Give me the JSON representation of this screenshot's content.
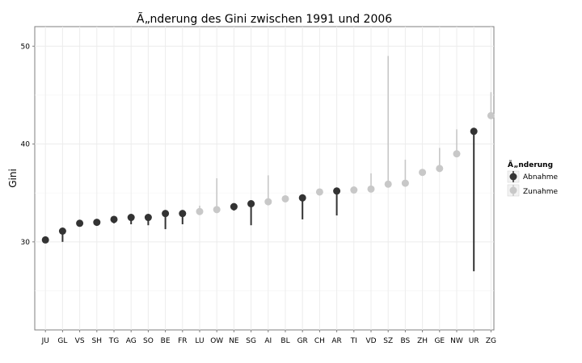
{
  "chart_data": {
    "type": "scatter",
    "title": "Ã„nderung des Gini zwischen 1991 und 2006",
    "xlabel": "",
    "ylabel": "Gini",
    "ylim": [
      21,
      52
    ],
    "yticks": [
      30,
      40,
      50
    ],
    "grid": true,
    "legend": {
      "title": "Ã„nderung",
      "position": "right",
      "entries": [
        {
          "name": "Abnahme",
          "color": "#333333"
        },
        {
          "name": "Zunahme",
          "color": "#c8c8c8"
        }
      ]
    },
    "categories": [
      "JU",
      "GL",
      "VS",
      "SH",
      "TG",
      "AG",
      "SO",
      "BE",
      "FR",
      "LU",
      "OW",
      "NE",
      "SG",
      "AI",
      "BL",
      "GR",
      "CH",
      "AR",
      "TI",
      "VD",
      "SZ",
      "BS",
      "ZH",
      "GE",
      "NW",
      "UR",
      "ZG"
    ],
    "points": [
      {
        "cat": "JU",
        "gini_2006": 30.2,
        "gini_1991": 30.4,
        "group": "Abnahme"
      },
      {
        "cat": "GL",
        "gini_2006": 31.1,
        "gini_1991": 30.0,
        "group": "Abnahme"
      },
      {
        "cat": "VS",
        "gini_2006": 31.9,
        "gini_1991": 32.0,
        "group": "Abnahme"
      },
      {
        "cat": "SH",
        "gini_2006": 32.0,
        "gini_1991": 31.9,
        "group": "Abnahme"
      },
      {
        "cat": "TG",
        "gini_2006": 32.3,
        "gini_1991": 31.9,
        "group": "Abnahme"
      },
      {
        "cat": "AG",
        "gini_2006": 32.5,
        "gini_1991": 31.8,
        "group": "Abnahme"
      },
      {
        "cat": "SO",
        "gini_2006": 32.5,
        "gini_1991": 31.7,
        "group": "Abnahme"
      },
      {
        "cat": "BE",
        "gini_2006": 32.9,
        "gini_1991": 31.3,
        "group": "Abnahme"
      },
      {
        "cat": "FR",
        "gini_2006": 32.9,
        "gini_1991": 31.8,
        "group": "Abnahme"
      },
      {
        "cat": "LU",
        "gini_2006": 33.1,
        "gini_1991": 33.7,
        "group": "Zunahme"
      },
      {
        "cat": "OW",
        "gini_2006": 33.3,
        "gini_1991": 36.5,
        "group": "Zunahme"
      },
      {
        "cat": "NE",
        "gini_2006": 33.6,
        "gini_1991": 33.2,
        "group": "Abnahme"
      },
      {
        "cat": "SG",
        "gini_2006": 33.9,
        "gini_1991": 31.7,
        "group": "Abnahme"
      },
      {
        "cat": "AI",
        "gini_2006": 34.1,
        "gini_1991": 36.8,
        "group": "Zunahme"
      },
      {
        "cat": "BL",
        "gini_2006": 34.4,
        "gini_1991": 34.6,
        "group": "Zunahme"
      },
      {
        "cat": "GR",
        "gini_2006": 34.5,
        "gini_1991": 32.3,
        "group": "Abnahme"
      },
      {
        "cat": "CH",
        "gini_2006": 35.1,
        "gini_1991": 35.3,
        "group": "Zunahme"
      },
      {
        "cat": "AR",
        "gini_2006": 35.2,
        "gini_1991": 32.7,
        "group": "Abnahme"
      },
      {
        "cat": "TI",
        "gini_2006": 35.3,
        "gini_1991": 35.5,
        "group": "Zunahme"
      },
      {
        "cat": "VD",
        "gini_2006": 35.4,
        "gini_1991": 37.0,
        "group": "Zunahme"
      },
      {
        "cat": "SZ",
        "gini_2006": 35.9,
        "gini_1991": 49.0,
        "group": "Zunahme"
      },
      {
        "cat": "BS",
        "gini_2006": 36.0,
        "gini_1991": 38.4,
        "group": "Zunahme"
      },
      {
        "cat": "ZH",
        "gini_2006": 37.1,
        "gini_1991": 37.4,
        "group": "Zunahme"
      },
      {
        "cat": "GE",
        "gini_2006": 37.5,
        "gini_1991": 39.6,
        "group": "Zunahme"
      },
      {
        "cat": "NW",
        "gini_2006": 39.0,
        "gini_1991": 41.5,
        "group": "Zunahme"
      },
      {
        "cat": "UR",
        "gini_2006": 41.3,
        "gini_1991": 27.0,
        "group": "Abnahme"
      },
      {
        "cat": "ZG",
        "gini_2006": 42.9,
        "gini_1991": 45.3,
        "group": "Zunahme"
      }
    ]
  }
}
